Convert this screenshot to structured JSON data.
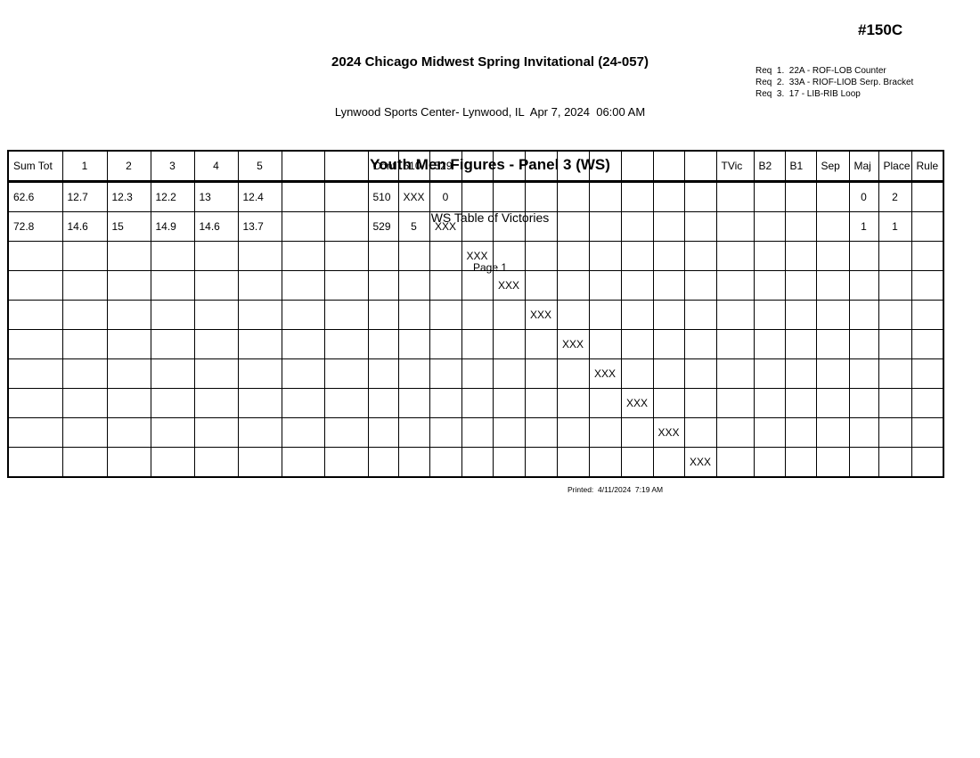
{
  "header": {
    "competition_title": "2024 Chicago Midwest Spring Invitational (24-057)",
    "venue_date_line": "Lynwood Sports Center- Lynwood, IL  Apr 7, 2024  06:00 AM",
    "event_title": "Youth Men Figures - Panel 3 (WS)",
    "report_title": "WS Table of Victories",
    "page_label": "Page 1",
    "start_number": "#150C",
    "requirements": [
      "Req  1.  22A - ROF-LOB Counter",
      "Req  2.  33A - RIOF-LIOB Serp. Bracket",
      "Req  3.  17 - LIB-RIB Loop"
    ]
  },
  "table": {
    "column_headers": [
      "Sum Tot",
      "1",
      "2",
      "3",
      "4",
      "5",
      "",
      "",
      "Cont",
      "510",
      "529",
      "",
      "",
      "",
      "",
      "",
      "",
      "",
      "",
      "TVic",
      "B2",
      "B1",
      "Sep",
      "Maj",
      "Place",
      "Rule"
    ],
    "rows": [
      [
        "62.6",
        "12.7",
        "12.3",
        "12.2",
        "13",
        "12.4",
        "",
        "",
        "510",
        "XXX",
        "0",
        "",
        "",
        "",
        "",
        "",
        "",
        "",
        "",
        "",
        "",
        "",
        "",
        "0",
        "2",
        ""
      ],
      [
        "72.8",
        "14.6",
        "15",
        "14.9",
        "14.6",
        "13.7",
        "",
        "",
        "529",
        "5",
        "XXX",
        "",
        "",
        "",
        "",
        "",
        "",
        "",
        "",
        "",
        "",
        "",
        "",
        "1",
        "1",
        ""
      ],
      [
        "",
        "",
        "",
        "",
        "",
        "",
        "",
        "",
        "",
        "",
        "",
        "XXX",
        "",
        "",
        "",
        "",
        "",
        "",
        "",
        "",
        "",
        "",
        "",
        "",
        "",
        ""
      ],
      [
        "",
        "",
        "",
        "",
        "",
        "",
        "",
        "",
        "",
        "",
        "",
        "",
        "XXX",
        "",
        "",
        "",
        "",
        "",
        "",
        "",
        "",
        "",
        "",
        "",
        "",
        ""
      ],
      [
        "",
        "",
        "",
        "",
        "",
        "",
        "",
        "",
        "",
        "",
        "",
        "",
        "",
        "XXX",
        "",
        "",
        "",
        "",
        "",
        "",
        "",
        "",
        "",
        "",
        "",
        ""
      ],
      [
        "",
        "",
        "",
        "",
        "",
        "",
        "",
        "",
        "",
        "",
        "",
        "",
        "",
        "",
        "XXX",
        "",
        "",
        "",
        "",
        "",
        "",
        "",
        "",
        "",
        "",
        ""
      ],
      [
        "",
        "",
        "",
        "",
        "",
        "",
        "",
        "",
        "",
        "",
        "",
        "",
        "",
        "",
        "",
        "XXX",
        "",
        "",
        "",
        "",
        "",
        "",
        "",
        "",
        "",
        ""
      ],
      [
        "",
        "",
        "",
        "",
        "",
        "",
        "",
        "",
        "",
        "",
        "",
        "",
        "",
        "",
        "",
        "",
        "XXX",
        "",
        "",
        "",
        "",
        "",
        "",
        "",
        "",
        ""
      ],
      [
        "",
        "",
        "",
        "",
        "",
        "",
        "",
        "",
        "",
        "",
        "",
        "",
        "",
        "",
        "",
        "",
        "",
        "XXX",
        "",
        "",
        "",
        "",
        "",
        "",
        "",
        ""
      ],
      [
        "",
        "",
        "",
        "",
        "",
        "",
        "",
        "",
        "",
        "",
        "",
        "",
        "",
        "",
        "",
        "",
        "",
        "",
        "XXX",
        "",
        "",
        "",
        "",
        "",
        "",
        ""
      ]
    ],
    "bold_value_column_header": "Place"
  },
  "footer": {
    "printed_line": "Printed:  4/11/2024  7:19 AM"
  }
}
